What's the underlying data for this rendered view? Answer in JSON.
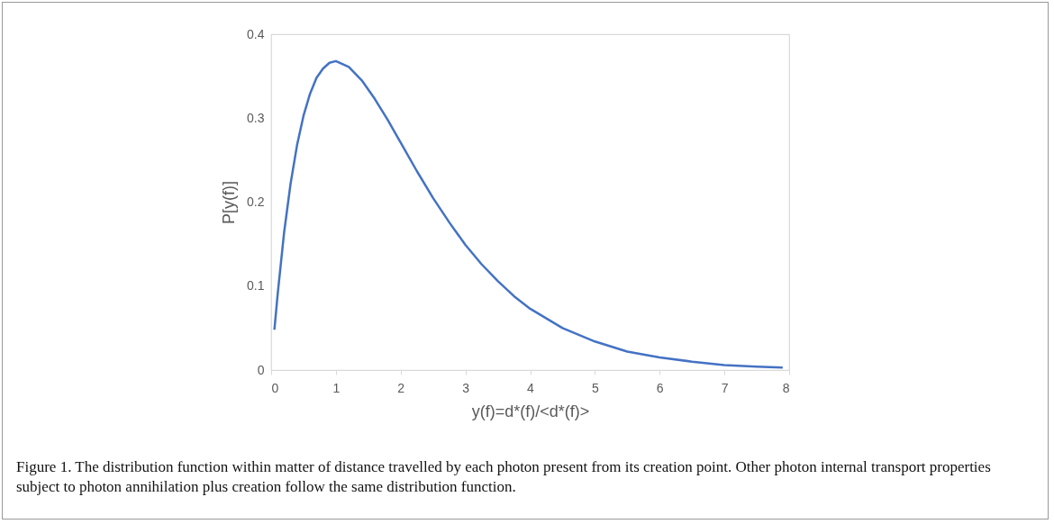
{
  "chart_data": {
    "type": "line",
    "xlabel": "y(f)=d*(f)/<d*(f)>",
    "ylabel": "P[y(f)]",
    "x": [
      0.05,
      0.1,
      0.2,
      0.3,
      0.4,
      0.5,
      0.6,
      0.7,
      0.8,
      0.9,
      1,
      1.2,
      1.4,
      1.6,
      1.8,
      2,
      2.25,
      2.5,
      2.75,
      3,
      3.25,
      3.5,
      3.75,
      4,
      4.5,
      5,
      5.5,
      6,
      6.5,
      7,
      7.5,
      7.9
    ],
    "series": [
      {
        "color": "#4472c4",
        "values": [
          0.048,
          0.09,
          0.164,
          0.222,
          0.268,
          0.303,
          0.329,
          0.348,
          0.359,
          0.366,
          0.368,
          0.361,
          0.345,
          0.323,
          0.298,
          0.271,
          0.237,
          0.205,
          0.176,
          0.149,
          0.126,
          0.106,
          0.088,
          0.073,
          0.05,
          0.034,
          0.022,
          0.015,
          0.01,
          0.006,
          0.004,
          0.003
        ]
      }
    ],
    "xlim": [
      0,
      8
    ],
    "xticks": [
      0,
      1,
      2,
      3,
      4,
      5,
      6,
      7,
      8
    ],
    "ylim": [
      0,
      0.4
    ],
    "yticks": [
      0,
      0.1,
      0.2,
      0.3,
      0.4
    ],
    "grid": false,
    "annotations": [
      "Figure 1. The distribution function within matter of distance travelled by each photon present from its creation point. Other photon internal transport properties subject to photon annihilation plus creation follow the same distribution function."
    ]
  }
}
